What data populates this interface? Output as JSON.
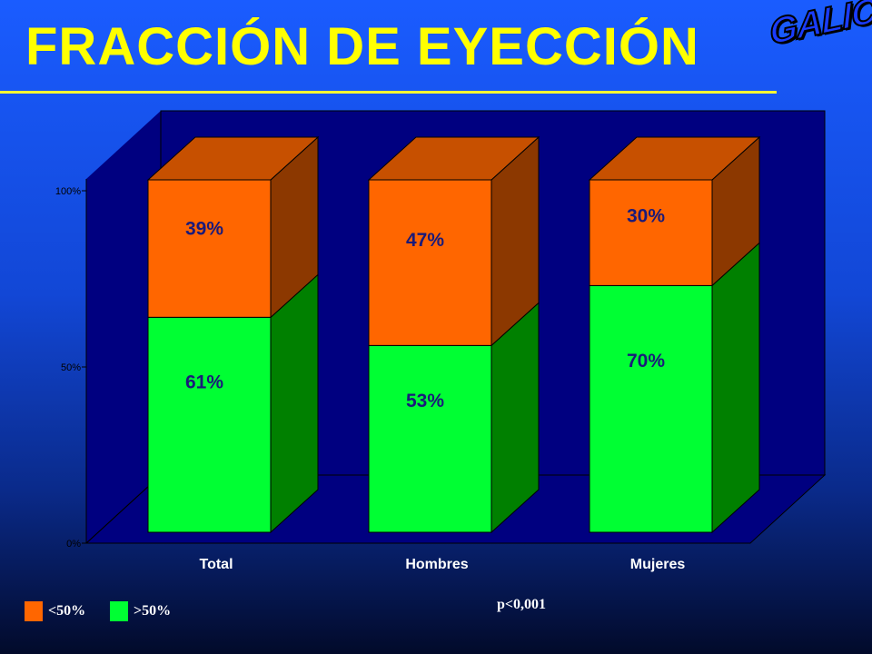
{
  "title": "FRACCIÓN DE EYECCIÓN",
  "logo_text": "GALICAP",
  "p_value": "p<0,001",
  "colors": {
    "lt50": "#ff6600",
    "gt50": "#00ff33",
    "wall": "#000080",
    "title": "#ffff00"
  },
  "chart_data": {
    "type": "bar",
    "stacked": true,
    "three_d": true,
    "categories": [
      "Total",
      "Hombres",
      "Mujeres"
    ],
    "series": [
      {
        "name": ">50%",
        "values": [
          61,
          53,
          70
        ],
        "labels": [
          "61%",
          "53%",
          "70%"
        ],
        "color": "#00ff33"
      },
      {
        "name": "<50%",
        "values": [
          39,
          47,
          30
        ],
        "labels": [
          "39%",
          "47%",
          "30%"
        ],
        "color": "#ff6600"
      }
    ],
    "yticks": [
      "0%",
      "50%",
      "100%"
    ],
    "ylim": [
      0,
      100
    ],
    "legend": [
      {
        "label": "<50%",
        "color": "#ff6600"
      },
      {
        "label": ">50%",
        "color": "#00ff33"
      }
    ],
    "legend_position": "bottom-left"
  }
}
